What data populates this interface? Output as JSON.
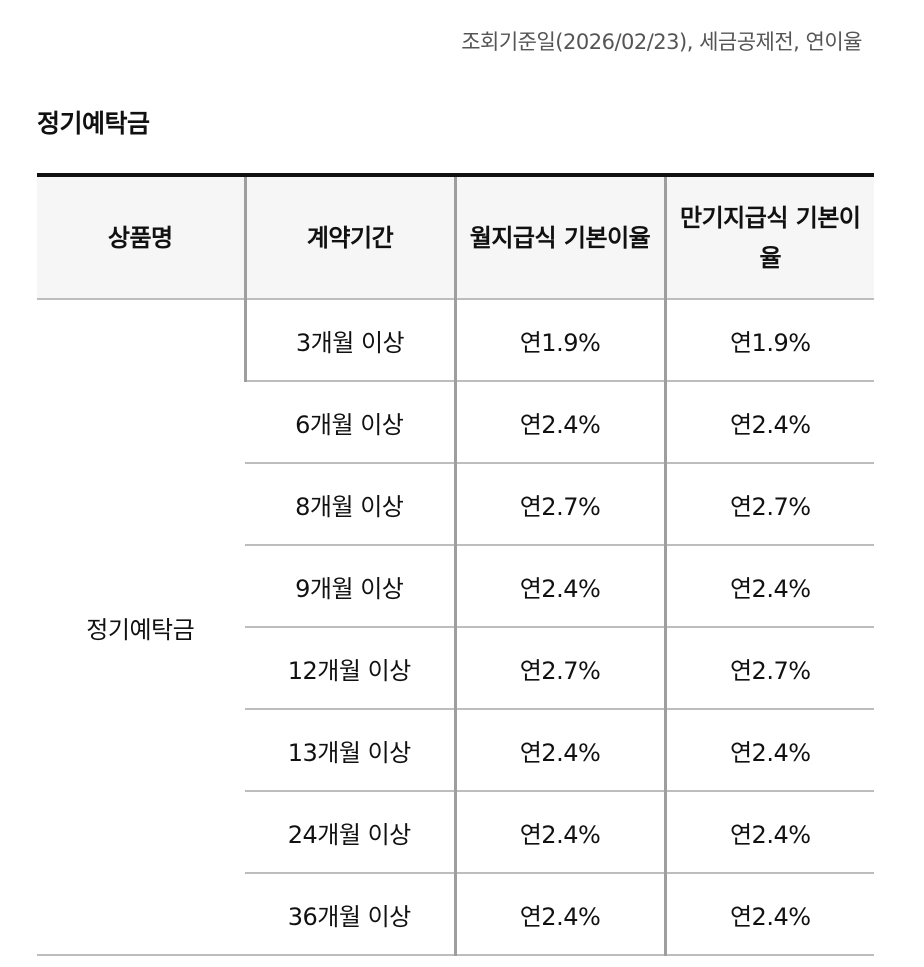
{
  "reference_note": "조회기준일(2026/02/23), 세금공제전, 연이율",
  "section_title": "정기예탁금",
  "table": {
    "headers": {
      "product": "상품명",
      "term": "계약기간",
      "monthly_rate": "월지급식 기본이율",
      "maturity_rate": "만기지급식 기본이율"
    },
    "product_name": "정기예탁금",
    "rows": [
      {
        "term": "3개월 이상",
        "monthly_rate": "연1.9%",
        "maturity_rate": "연1.9%"
      },
      {
        "term": "6개월 이상",
        "monthly_rate": "연2.4%",
        "maturity_rate": "연2.4%"
      },
      {
        "term": "8개월 이상",
        "monthly_rate": "연2.7%",
        "maturity_rate": "연2.7%"
      },
      {
        "term": "9개월 이상",
        "monthly_rate": "연2.4%",
        "maturity_rate": "연2.4%"
      },
      {
        "term": "12개월 이상",
        "monthly_rate": "연2.7%",
        "maturity_rate": "연2.7%"
      },
      {
        "term": "13개월 이상",
        "monthly_rate": "연2.4%",
        "maturity_rate": "연2.4%"
      },
      {
        "term": "24개월 이상",
        "monthly_rate": "연2.4%",
        "maturity_rate": "연2.4%"
      },
      {
        "term": "36개월 이상",
        "monthly_rate": "연2.4%",
        "maturity_rate": "연2.4%"
      }
    ]
  }
}
